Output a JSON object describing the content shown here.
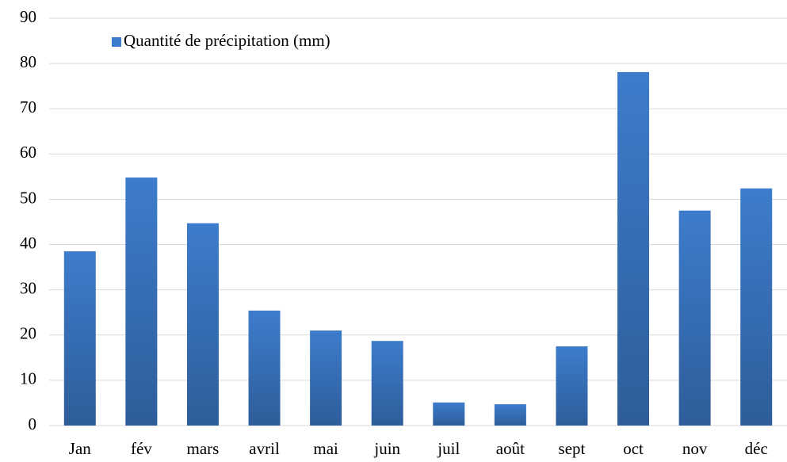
{
  "chart_data": {
    "type": "bar",
    "categories": [
      "Jan",
      "fév",
      "mars",
      "avril",
      "mai",
      "juin",
      "juil",
      "août",
      "sept",
      "oct",
      "nov",
      "déc"
    ],
    "series": [
      {
        "name": "Quantité de précipitation (mm)",
        "color": "#3d7ccc",
        "values": [
          38.5,
          54.8,
          44.7,
          25.4,
          21.0,
          18.7,
          5.1,
          4.7,
          17.5,
          78.1,
          47.5,
          52.4
        ]
      }
    ],
    "ylim": [
      0,
      90
    ],
    "yticks": [
      0,
      10,
      20,
      30,
      40,
      50,
      60,
      70,
      80,
      90
    ],
    "grid": true,
    "legend": "top-left"
  }
}
